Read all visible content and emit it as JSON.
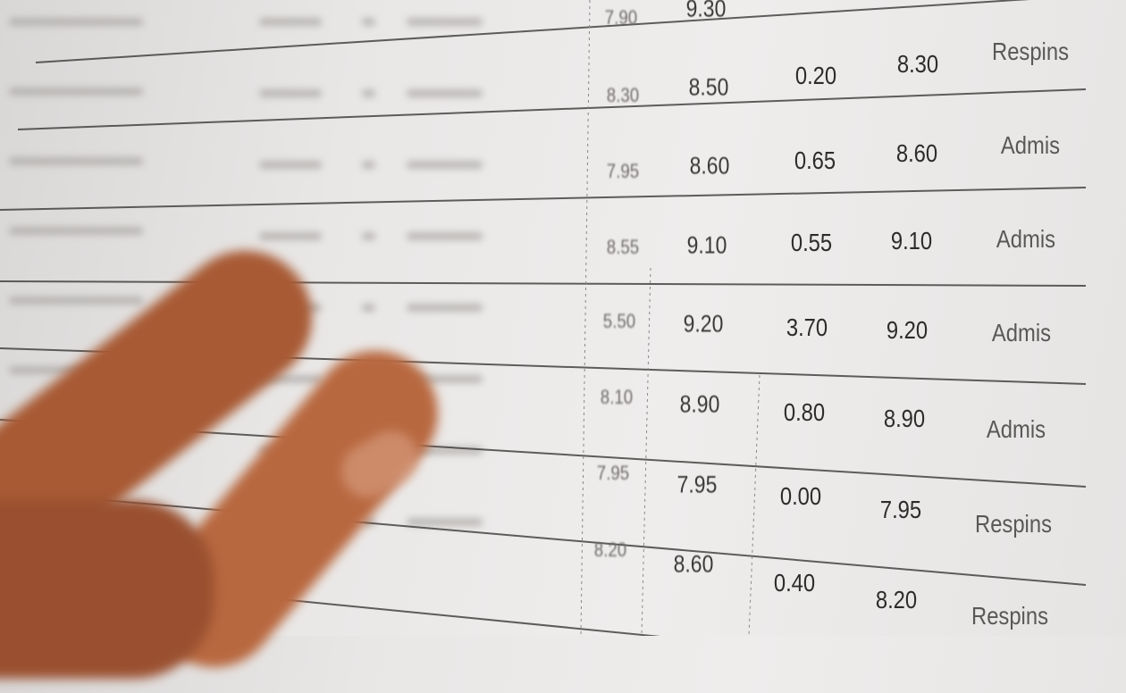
{
  "sheet": {
    "rows": [
      [
        "7.90",
        "9.30",
        "",
        "",
        ""
      ],
      [
        "8.30",
        "8.50",
        "0.20",
        "8.30",
        "Respins"
      ],
      [
        "7.95",
        "8.60",
        "0.65",
        "8.60",
        "Admis"
      ],
      [
        "8.55",
        "9.10",
        "0.55",
        "9.10",
        "Admis"
      ],
      [
        "5.50",
        "9.20",
        "3.70",
        "9.20",
        "Admis"
      ],
      [
        "8.10",
        "8.90",
        "0.80",
        "8.90",
        "Admis"
      ],
      [
        "7.95",
        "7.95",
        "0.00",
        "7.95",
        "Respins"
      ],
      [
        "8.20",
        "8.60",
        "0.40",
        "8.20",
        "Respins"
      ]
    ]
  },
  "colors": {
    "paper": "#ecebea",
    "ink": "#2e2c2b",
    "skin": "#b0623a"
  }
}
